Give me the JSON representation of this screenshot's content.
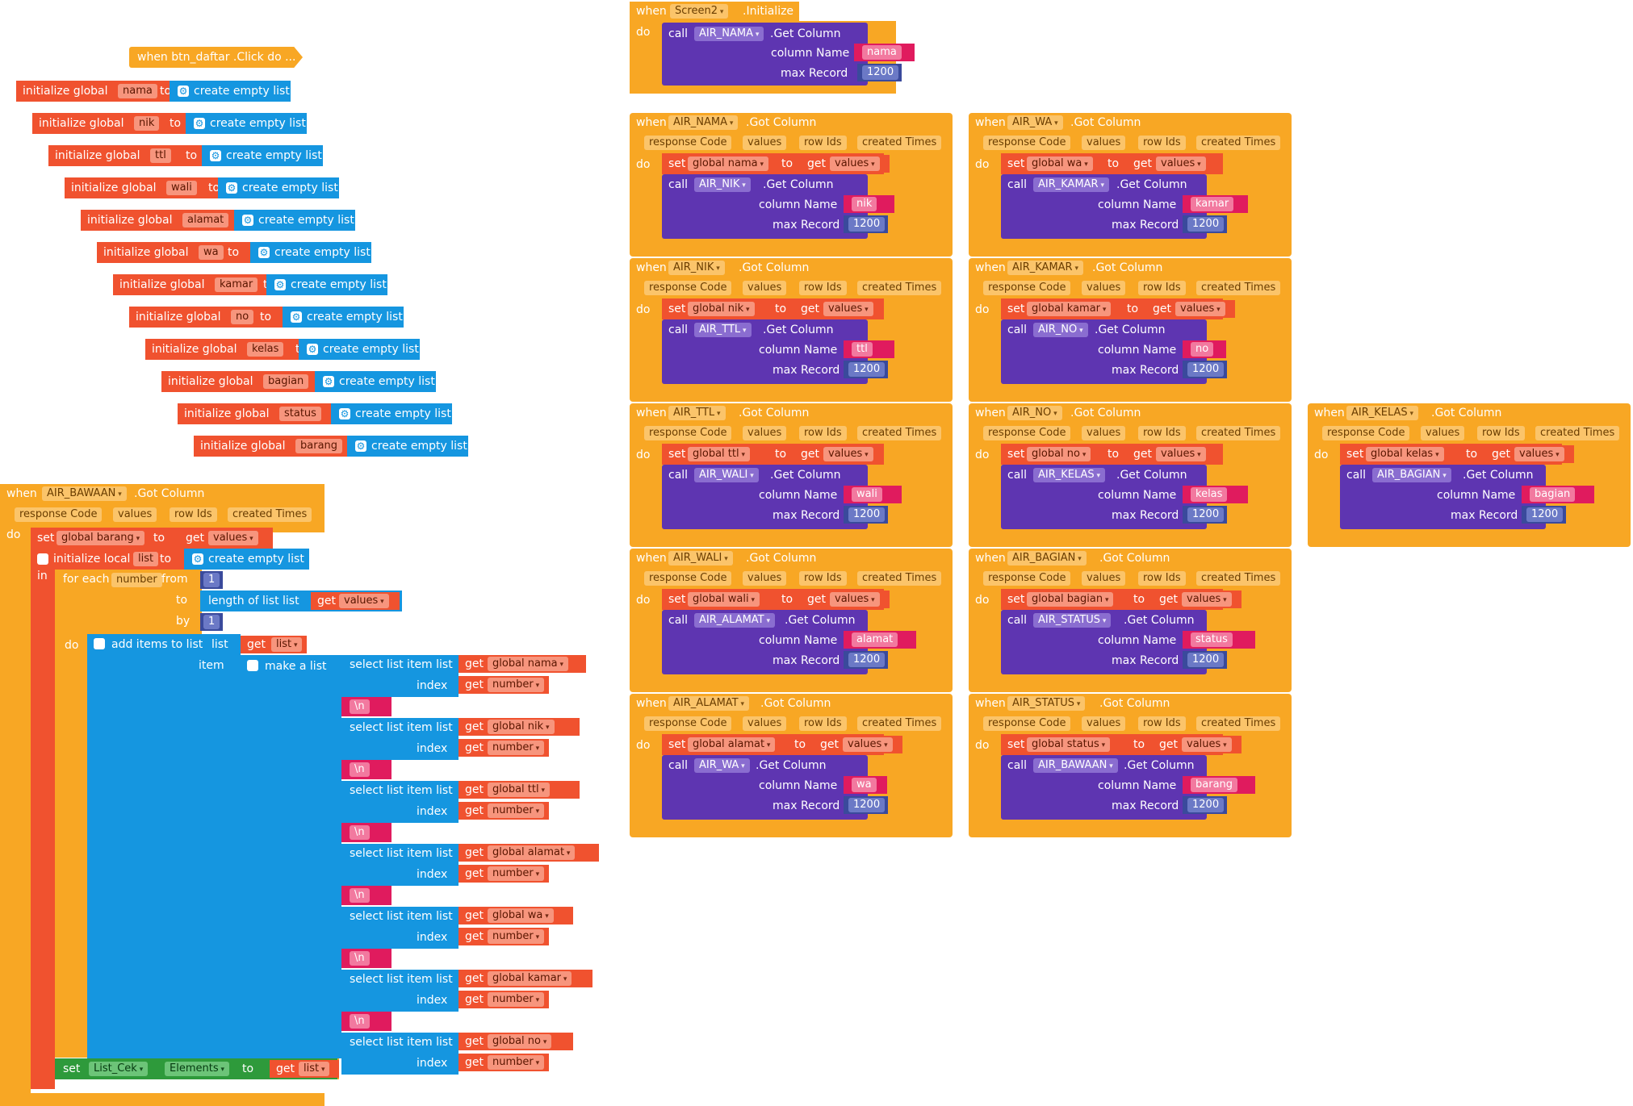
{
  "labels": {
    "when": "when",
    "do": "do",
    "call": "call",
    "set": "set",
    "to": "to",
    "get": "get",
    "in": "in",
    "get_column": ".Get Column",
    "got_column": ".Got Column",
    "initialize": ".Initialize",
    "column_name": "column Name",
    "max_record": "max Record",
    "max_record_value": "1200",
    "response_code": "response Code",
    "values": "values",
    "row_ids": "row Ids",
    "created_times": "created Times",
    "initialize_global": "initialize global",
    "initialize_local": "initialize local",
    "create_empty_list": "create empty list",
    "for_each": "for each",
    "from": "from",
    "by": "by",
    "length_of_list": "length of list  list",
    "add_items_to_list": "add items to list",
    "list": "list",
    "item": "item",
    "make_a_list": "make a list",
    "select_list_item": "select list item  list",
    "index": "index",
    "number": "number",
    "one": "1",
    "newline": "\\n",
    "elements": "Elements"
  },
  "event_header": "when  btn_daftar .Click do ...",
  "init_globals": [
    "nama",
    "nik",
    "ttl",
    "wali",
    "alamat",
    "wa",
    "kamar",
    "no",
    "kelas",
    "bagian",
    "status",
    "barang"
  ],
  "screen_initialize": {
    "component": "Screen2",
    "call_component": "AIR_NAMA",
    "column": "nama"
  },
  "got_column_handlers": [
    {
      "component": "AIR_NAMA",
      "global": "global nama",
      "call_component": "AIR_NIK",
      "column": "nik"
    },
    {
      "component": "AIR_WA",
      "global": "global wa",
      "call_component": "AIR_KAMAR",
      "column": "kamar"
    },
    {
      "component": "AIR_NIK",
      "global": "global nik",
      "call_component": "AIR_TTL",
      "column": "ttl"
    },
    {
      "component": "AIR_KAMAR",
      "global": "global kamar",
      "call_component": "AIR_NO",
      "column": "no"
    },
    {
      "component": "AIR_TTL",
      "global": "global ttl",
      "call_component": "AIR_WALI",
      "column": "wali"
    },
    {
      "component": "AIR_NO",
      "global": "global no",
      "call_component": "AIR_KELAS",
      "column": "kelas"
    },
    {
      "component": "AIR_KELAS",
      "global": "global kelas",
      "call_component": "AIR_BAGIAN",
      "column": "bagian"
    },
    {
      "component": "AIR_WALI",
      "global": "global wali",
      "call_component": "AIR_ALAMAT",
      "column": "alamat"
    },
    {
      "component": "AIR_BAGIAN",
      "global": "global bagian",
      "call_component": "AIR_STATUS",
      "column": "status"
    },
    {
      "component": "AIR_ALAMAT",
      "global": "global alamat",
      "call_component": "AIR_WA",
      "column": "wa"
    },
    {
      "component": "AIR_STATUS",
      "global": "global status",
      "call_component": "AIR_BAWAAN",
      "column": "barang"
    }
  ],
  "bawaan_handler": {
    "component": "AIR_BAWAAN",
    "set_global": "global barang",
    "local_var": "list",
    "loop_var": "number",
    "select_lists": [
      "global nama",
      "global nik",
      "global ttl",
      "global alamat",
      "global wa",
      "global kamar",
      "global no"
    ],
    "final_component": "List_Cek",
    "final_get": "list"
  },
  "colors": {
    "event": "#f8a724",
    "variable": "#f0522f",
    "component": "#5e35b1",
    "list": "#1596e0",
    "text": "#e01b5e",
    "math": "#3a4a9c",
    "component_set": "#2e9a3b"
  }
}
